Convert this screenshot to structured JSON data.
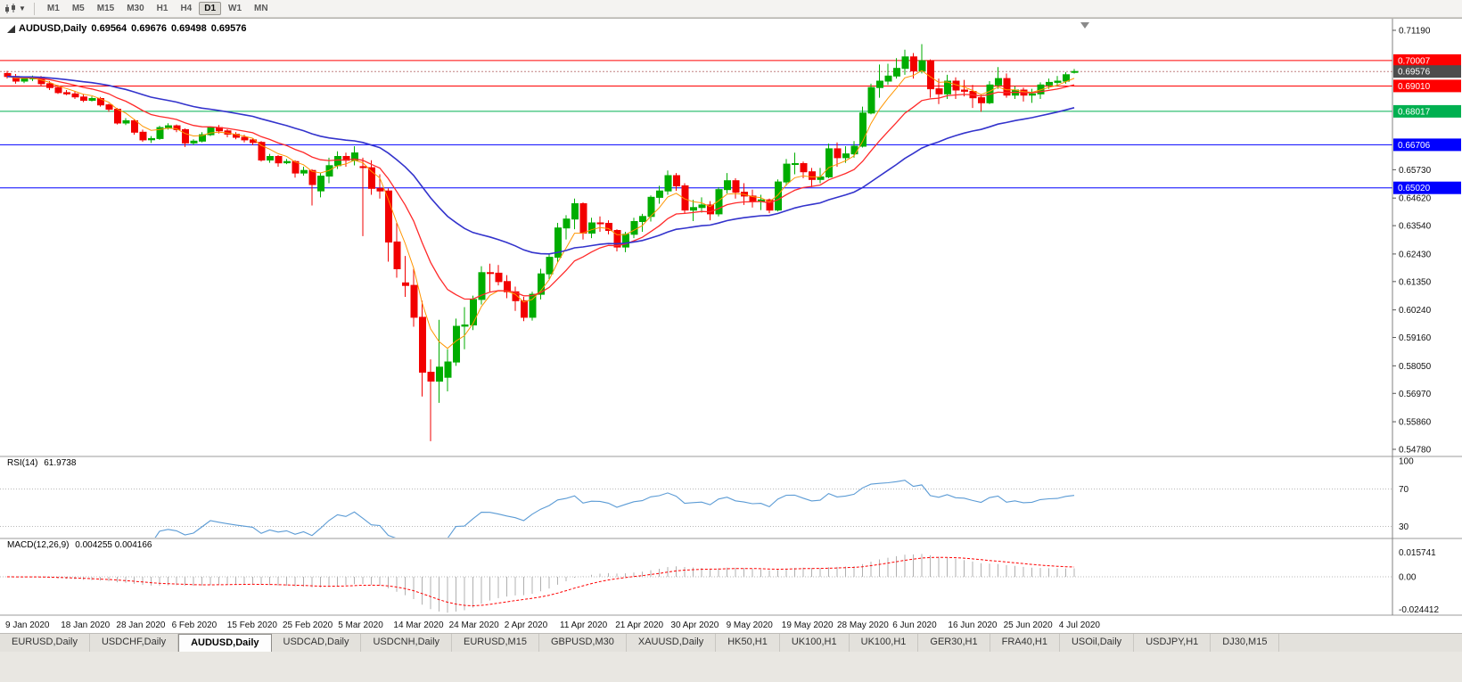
{
  "toolbar": {
    "timeframes": [
      "M1",
      "M5",
      "M15",
      "M30",
      "H1",
      "H4",
      "D1",
      "W1",
      "MN"
    ],
    "active_timeframe": "D1"
  },
  "chart_title": {
    "symbol": "AUDUSD,Daily",
    "open": "0.69564",
    "high": "0.69676",
    "low": "0.69498",
    "close": "0.69576"
  },
  "indicators": {
    "rsi": {
      "label": "RSI(14)",
      "value": "61.9738",
      "color": "#5b9bd5",
      "period": 14,
      "levels": [
        {
          "v": 100,
          "label": "100",
          "line": false
        },
        {
          "v": 70,
          "label": "70",
          "line": true
        },
        {
          "v": 30,
          "label": "30",
          "line": true
        }
      ]
    },
    "macd": {
      "label": "MACD(12,26,9)",
      "values": "0.004255 0.004166",
      "histogram_color": "#b0b0b0",
      "signal_color": "#ff0000",
      "fast": 12,
      "slow": 26,
      "signal": 9,
      "ticks": [
        {
          "v": 0.015741,
          "label": "0.015741"
        },
        {
          "v": 0,
          "label": "0.00"
        },
        {
          "v": -0.024412,
          "label": "-0.024412"
        }
      ]
    }
  },
  "chart_data": {
    "type": "candlestick",
    "symbol": "AUDUSD",
    "timeframe": "Daily",
    "up_color": "#00ad00",
    "down_color": "#f20000",
    "price_axis": {
      "max": 0.7119,
      "min": 0.5478,
      "ticks": [
        "0.71190",
        "0.65730",
        "0.64620",
        "0.63540",
        "0.62430",
        "0.61350",
        "0.60240",
        "0.59160",
        "0.58050",
        "0.56970",
        "0.55860",
        "0.54780"
      ]
    },
    "x_axis": {
      "labels": [
        "9 Jan 2020",
        "18 Jan 2020",
        "28 Jan 2020",
        "6 Feb 2020",
        "15 Feb 2020",
        "25 Feb 2020",
        "5 Mar 2020",
        "14 Mar 2020",
        "24 Mar 2020",
        "2 Apr 2020",
        "11 Apr 2020",
        "21 Apr 2020",
        "30 Apr 2020",
        "9 May 2020",
        "19 May 2020",
        "28 May 2020",
        "6 Jun 2020",
        "16 Jun 2020",
        "25 Jun 2020",
        "4 Jul 2020"
      ]
    },
    "hlines": [
      {
        "price": 0.70007,
        "label": "0.70007",
        "color": "#ff0000"
      },
      {
        "price": 0.6901,
        "label": "0.69010",
        "color": "#ff0000"
      },
      {
        "price": 0.68017,
        "label": "0.68017",
        "color": "#00b050"
      },
      {
        "price": 0.66706,
        "label": "0.66706",
        "color": "#0000ff"
      },
      {
        "price": 0.6502,
        "label": "0.65020",
        "color": "#0000ff"
      }
    ],
    "current_price": {
      "price": 0.69576,
      "label": "0.69576",
      "box_color": "#4d4d4d"
    },
    "moving_averages": [
      {
        "period": 5,
        "color": "#ff9500",
        "width": 1
      },
      {
        "period": 13,
        "color": "#ff2a2a",
        "width": 1.3
      },
      {
        "period": 34,
        "color": "#3333cc",
        "width": 1.6
      }
    ],
    "candles": [
      [
        0.695,
        0.696,
        0.693,
        0.6938
      ],
      [
        0.6938,
        0.6948,
        0.691,
        0.692
      ],
      [
        0.692,
        0.6935,
        0.6912,
        0.6929
      ],
      [
        0.6929,
        0.6942,
        0.692,
        0.6935
      ],
      [
        0.6935,
        0.694,
        0.6902,
        0.691
      ],
      [
        0.691,
        0.692,
        0.6885,
        0.6895
      ],
      [
        0.6895,
        0.6905,
        0.687,
        0.6875
      ],
      [
        0.6875,
        0.6885,
        0.6865,
        0.687
      ],
      [
        0.687,
        0.688,
        0.685,
        0.6858
      ],
      [
        0.6858,
        0.687,
        0.6838,
        0.6845
      ],
      [
        0.6845,
        0.686,
        0.684,
        0.6852
      ],
      [
        0.6852,
        0.6858,
        0.682,
        0.6827
      ],
      [
        0.6827,
        0.6832,
        0.68,
        0.681
      ],
      [
        0.681,
        0.6815,
        0.675,
        0.6756
      ],
      [
        0.6756,
        0.6775,
        0.6748,
        0.6765
      ],
      [
        0.6765,
        0.677,
        0.671,
        0.672
      ],
      [
        0.672,
        0.673,
        0.6682,
        0.669
      ],
      [
        0.669,
        0.6705,
        0.6678,
        0.6695
      ],
      [
        0.6695,
        0.6745,
        0.669,
        0.6738
      ],
      [
        0.6738,
        0.6755,
        0.673,
        0.6745
      ],
      [
        0.6745,
        0.675,
        0.672,
        0.673
      ],
      [
        0.673,
        0.6735,
        0.6662,
        0.6678
      ],
      [
        0.6678,
        0.6692,
        0.667,
        0.6685
      ],
      [
        0.6685,
        0.672,
        0.668,
        0.671
      ],
      [
        0.671,
        0.6742,
        0.6705,
        0.6738
      ],
      [
        0.6738,
        0.6748,
        0.6715,
        0.6725
      ],
      [
        0.6725,
        0.6732,
        0.67,
        0.6712
      ],
      [
        0.6712,
        0.672,
        0.6692,
        0.67
      ],
      [
        0.67,
        0.671,
        0.668,
        0.669
      ],
      [
        0.669,
        0.6695,
        0.667,
        0.668
      ],
      [
        0.668,
        0.6685,
        0.6605,
        0.6611
      ],
      [
        0.6611,
        0.6635,
        0.66,
        0.6625
      ],
      [
        0.6625,
        0.663,
        0.6585,
        0.66
      ],
      [
        0.66,
        0.6615,
        0.6595,
        0.6605
      ],
      [
        0.6605,
        0.661,
        0.6542,
        0.656
      ],
      [
        0.656,
        0.6585,
        0.655,
        0.657
      ],
      [
        0.657,
        0.6575,
        0.6433,
        0.6515
      ],
      [
        0.649,
        0.656,
        0.6465,
        0.6548
      ],
      [
        0.6548,
        0.662,
        0.652,
        0.6589
      ],
      [
        0.6589,
        0.6645,
        0.6576,
        0.6625
      ],
      [
        0.6625,
        0.664,
        0.6585,
        0.661
      ],
      [
        0.661,
        0.6665,
        0.659,
        0.6639
      ],
      [
        0.6585,
        0.662,
        0.6313,
        0.6581
      ],
      [
        0.6581,
        0.661,
        0.6475,
        0.65
      ],
      [
        0.65,
        0.6555,
        0.646,
        0.649
      ],
      [
        0.649,
        0.65,
        0.6213,
        0.629
      ],
      [
        0.629,
        0.6365,
        0.615,
        0.6185
      ],
      [
        0.613,
        0.6235,
        0.6075,
        0.612
      ],
      [
        0.612,
        0.6185,
        0.5958,
        0.5995
      ],
      [
        0.5995,
        0.606,
        0.5685,
        0.578
      ],
      [
        0.578,
        0.583,
        0.551,
        0.5745
      ],
      [
        0.5745,
        0.5985,
        0.566,
        0.58
      ],
      [
        0.576,
        0.587,
        0.5705,
        0.582
      ],
      [
        0.582,
        0.599,
        0.5805,
        0.596
      ],
      [
        0.596,
        0.6035,
        0.587,
        0.5965
      ],
      [
        0.5965,
        0.608,
        0.5945,
        0.6065
      ],
      [
        0.6065,
        0.6195,
        0.6045,
        0.617
      ],
      [
        0.617,
        0.6205,
        0.6095,
        0.6168
      ],
      [
        0.6168,
        0.62,
        0.612,
        0.6135
      ],
      [
        0.6135,
        0.616,
        0.607,
        0.6095
      ],
      [
        0.6095,
        0.6115,
        0.602,
        0.606
      ],
      [
        0.606,
        0.6075,
        0.598,
        0.5995
      ],
      [
        0.5995,
        0.6095,
        0.5982,
        0.6085
      ],
      [
        0.6085,
        0.6185,
        0.6065,
        0.6165
      ],
      [
        0.6165,
        0.6245,
        0.6145,
        0.623
      ],
      [
        0.623,
        0.6365,
        0.621,
        0.6345
      ],
      [
        0.6345,
        0.6395,
        0.63,
        0.638
      ],
      [
        0.638,
        0.646,
        0.634,
        0.644
      ],
      [
        0.644,
        0.6445,
        0.63,
        0.6325
      ],
      [
        0.6325,
        0.6385,
        0.6305,
        0.6365
      ],
      [
        0.6365,
        0.639,
        0.633,
        0.6363
      ],
      [
        0.6363,
        0.6375,
        0.632,
        0.6335
      ],
      [
        0.6335,
        0.634,
        0.6253,
        0.627
      ],
      [
        0.627,
        0.633,
        0.625,
        0.632
      ],
      [
        0.632,
        0.6385,
        0.6305,
        0.637
      ],
      [
        0.637,
        0.64,
        0.633,
        0.639
      ],
      [
        0.639,
        0.6472,
        0.637,
        0.6465
      ],
      [
        0.6465,
        0.651,
        0.644,
        0.649
      ],
      [
        0.649,
        0.657,
        0.6475,
        0.655
      ],
      [
        0.655,
        0.656,
        0.649,
        0.651
      ],
      [
        0.651,
        0.652,
        0.6402,
        0.6415
      ],
      [
        0.6415,
        0.6455,
        0.6372,
        0.6425
      ],
      [
        0.6425,
        0.6465,
        0.6405,
        0.6435
      ],
      [
        0.6435,
        0.645,
        0.6375,
        0.64
      ],
      [
        0.64,
        0.6505,
        0.639,
        0.6495
      ],
      [
        0.6495,
        0.656,
        0.648,
        0.653
      ],
      [
        0.653,
        0.654,
        0.646,
        0.6485
      ],
      [
        0.6485,
        0.652,
        0.6435,
        0.647
      ],
      [
        0.647,
        0.6495,
        0.6425,
        0.645
      ],
      [
        0.645,
        0.6475,
        0.6415,
        0.6455
      ],
      [
        0.6455,
        0.646,
        0.6403,
        0.6415
      ],
      [
        0.6415,
        0.6535,
        0.641,
        0.6525
      ],
      [
        0.6525,
        0.6615,
        0.651,
        0.6595
      ],
      [
        0.6595,
        0.664,
        0.6555,
        0.6597
      ],
      [
        0.6597,
        0.6605,
        0.654,
        0.6565
      ],
      [
        0.6565,
        0.658,
        0.6505,
        0.6535
      ],
      [
        0.6535,
        0.658,
        0.652,
        0.6545
      ],
      [
        0.6545,
        0.6675,
        0.654,
        0.6655
      ],
      [
        0.6655,
        0.668,
        0.6585,
        0.662
      ],
      [
        0.662,
        0.6665,
        0.66,
        0.6635
      ],
      [
        0.6635,
        0.6685,
        0.662,
        0.6665
      ],
      [
        0.6665,
        0.682,
        0.666,
        0.6795
      ],
      [
        0.6795,
        0.691,
        0.679,
        0.6895
      ],
      [
        0.6895,
        0.6985,
        0.6855,
        0.692
      ],
      [
        0.692,
        0.6988,
        0.6905,
        0.694
      ],
      [
        0.694,
        0.701,
        0.693,
        0.697
      ],
      [
        0.697,
        0.7043,
        0.6945,
        0.7015
      ],
      [
        0.7015,
        0.703,
        0.693,
        0.696
      ],
      [
        0.696,
        0.7065,
        0.695,
        0.7
      ],
      [
        0.7,
        0.7005,
        0.6855,
        0.689
      ],
      [
        0.689,
        0.693,
        0.683,
        0.687
      ],
      [
        0.687,
        0.6945,
        0.685,
        0.692
      ],
      [
        0.692,
        0.6935,
        0.685,
        0.6885
      ],
      [
        0.6885,
        0.6925,
        0.686,
        0.688
      ],
      [
        0.688,
        0.6905,
        0.6815,
        0.6855
      ],
      [
        0.6855,
        0.687,
        0.68,
        0.6835
      ],
      [
        0.6835,
        0.692,
        0.683,
        0.6905
      ],
      [
        0.6905,
        0.6975,
        0.689,
        0.693
      ],
      [
        0.693,
        0.695,
        0.6855,
        0.6865
      ],
      [
        0.6865,
        0.69,
        0.685,
        0.6885
      ],
      [
        0.6885,
        0.6895,
        0.684,
        0.6865
      ],
      [
        0.6865,
        0.689,
        0.6835,
        0.687
      ],
      [
        0.687,
        0.6915,
        0.685,
        0.6905
      ],
      [
        0.6905,
        0.693,
        0.689,
        0.6915
      ],
      [
        0.6915,
        0.694,
        0.69,
        0.692
      ],
      [
        0.692,
        0.6955,
        0.691,
        0.6945
      ],
      [
        0.69564,
        0.69676,
        0.69498,
        0.69576
      ]
    ]
  },
  "tabs": {
    "active_index": 2,
    "items": [
      "EURUSD,Daily",
      "USDCHF,Daily",
      "AUDUSD,Daily",
      "USDCAD,Daily",
      "USDCNH,Daily",
      "EURUSD,M15",
      "GBPUSD,M30",
      "XAUUSD,Daily",
      "HK50,H1",
      "UK100,H1",
      "UK100,H1",
      "GER30,H1",
      "FRA40,H1",
      "USOil,Daily",
      "USDJPY,H1",
      "DJ30,M15"
    ]
  }
}
